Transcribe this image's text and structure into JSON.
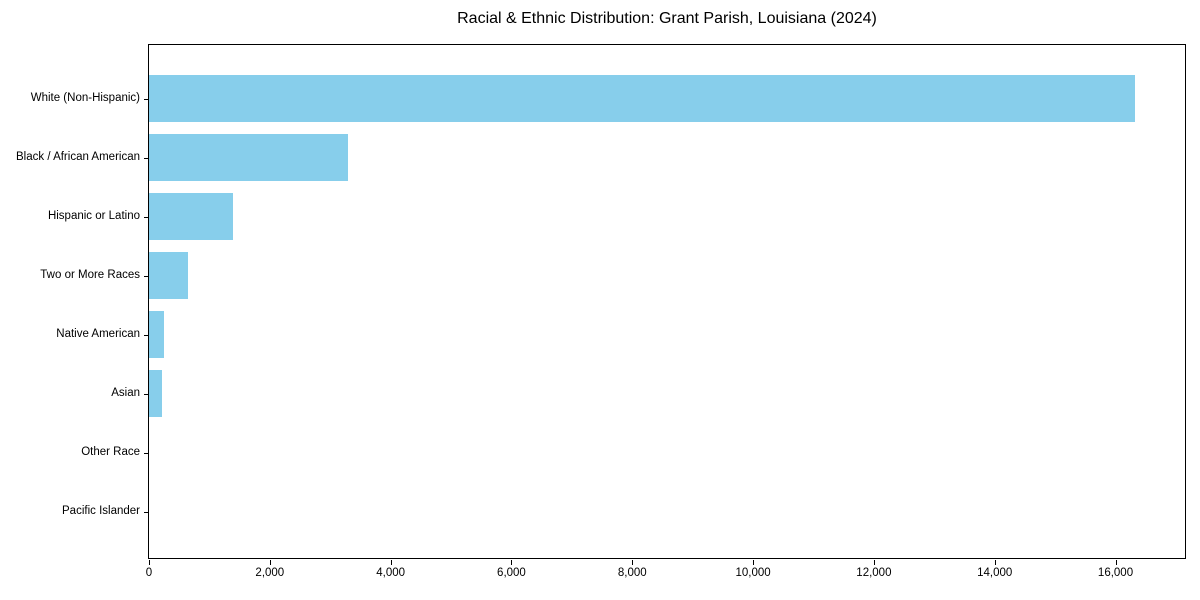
{
  "colors": {
    "bar": "#87CEEB",
    "axis": "#000000",
    "background": "#ffffff",
    "text": "#000000"
  },
  "chart_data": {
    "type": "bar",
    "orientation": "horizontal",
    "title": "Racial & Ethnic Distribution: Grant Parish, Louisiana (2024)",
    "categories": [
      "White (Non-Hispanic)",
      "Black / African American",
      "Hispanic or Latino",
      "Two or More Races",
      "Native American",
      "Asian",
      "Other Race",
      "Pacific Islander"
    ],
    "values": [
      16330,
      3300,
      1390,
      645,
      250,
      210,
      0,
      0
    ],
    "xlabel": "",
    "ylabel": "",
    "xlim": [
      0,
      17150
    ],
    "xticks": [
      0,
      2000,
      4000,
      6000,
      8000,
      10000,
      12000,
      14000,
      16000
    ],
    "xtick_labels": [
      "0",
      "2,000",
      "4,000",
      "6,000",
      "8,000",
      "10,000",
      "12,000",
      "14,000",
      "16,000"
    ],
    "grid": false,
    "legend": null,
    "bar_color": "#87CEEB"
  }
}
